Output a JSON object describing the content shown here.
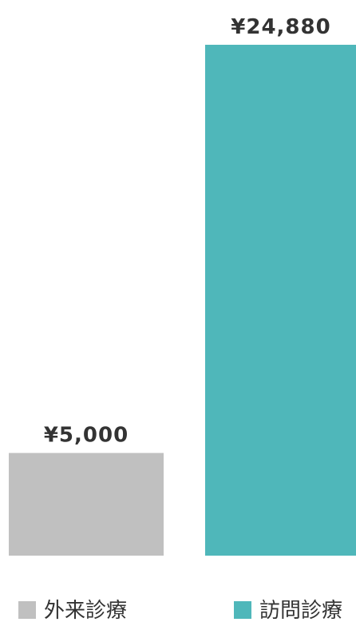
{
  "chart_data": {
    "type": "bar",
    "categories": [
      "外来診療",
      "訪問診療"
    ],
    "values": [
      5000,
      24880
    ],
    "value_labels": [
      "¥5,000",
      "¥24,880"
    ],
    "colors": [
      "#c0c0c0",
      "#4fb7ba"
    ]
  }
}
